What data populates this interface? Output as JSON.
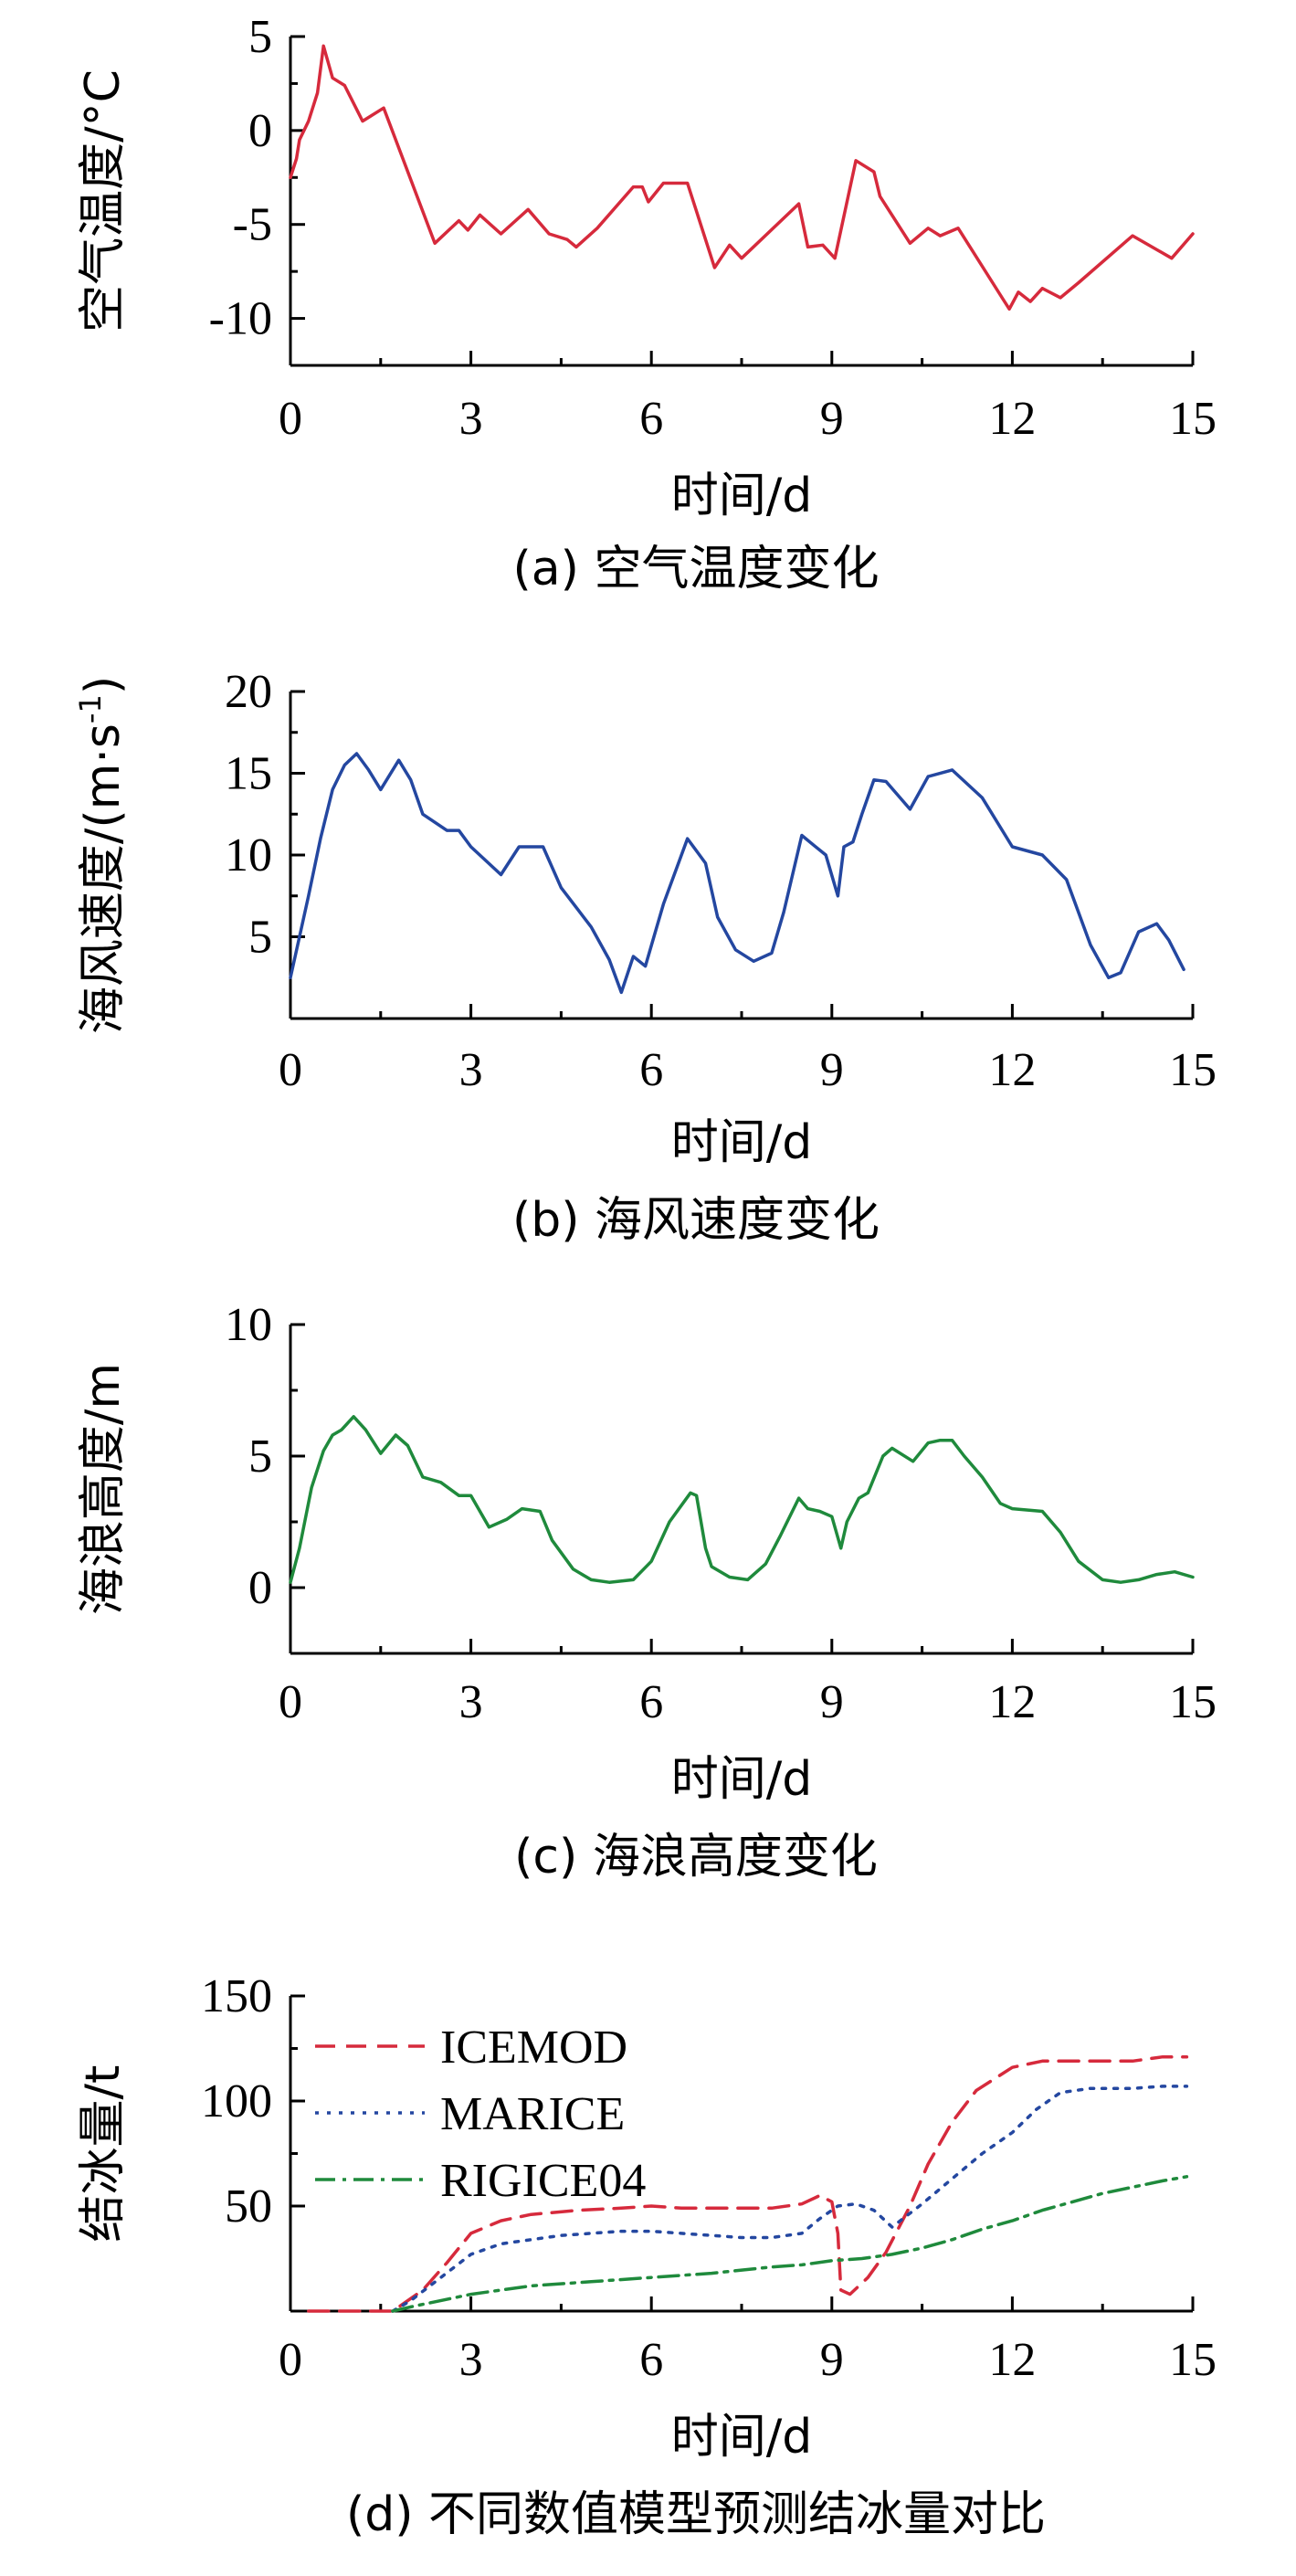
{
  "chart_data": [
    {
      "type": "line",
      "caption": "(a) 空气温度变化",
      "xlabel": "时间/d",
      "ylabel": "空气温度/°C",
      "xlim": [
        0,
        15
      ],
      "ylim": [
        -12.5,
        5
      ],
      "xticks": [
        0,
        3,
        6,
        9,
        12,
        15
      ],
      "yticks": [
        5,
        0,
        -5,
        -10
      ],
      "series": [
        {
          "color": "#d62a3c",
          "x": [
            0,
            0.1,
            0.15,
            0.3,
            0.45,
            0.55,
            0.7,
            0.9,
            1.2,
            1.55,
            2.4,
            2.8,
            2.95,
            3.15,
            3.5,
            3.95,
            4.3,
            4.6,
            4.75,
            5.1,
            5.7,
            5.85,
            5.95,
            6.2,
            6.6,
            7.05,
            7.3,
            7.5,
            8.45,
            8.6,
            8.85,
            9.05,
            9.4,
            9.7,
            9.8,
            10.3,
            10.6,
            10.8,
            11.1,
            11.85,
            11.95,
            12.1,
            12.3,
            12.5,
            12.8,
            13.1,
            14.0,
            14.65,
            15.0
          ],
          "y": [
            -2.5,
            -1.5,
            -0.5,
            0.5,
            2,
            4.5,
            2.8,
            2.4,
            0.5,
            1.2,
            -6,
            -4.8,
            -5.3,
            -4.5,
            -5.5,
            -4.2,
            -5.5,
            -5.8,
            -6.2,
            -5.2,
            -3,
            -3,
            -3.8,
            -2.8,
            -2.8,
            -7.3,
            -6.1,
            -6.8,
            -3.9,
            -6.2,
            -6.1,
            -6.8,
            -1.6,
            -2.2,
            -3.5,
            -6,
            -5.2,
            -5.6,
            -5.2,
            -9,
            -9.5,
            -8.6,
            -9.1,
            -8.4,
            -8.9,
            -8.1,
            -5.6,
            -6.8,
            -5.5
          ]
        }
      ]
    },
    {
      "type": "line",
      "caption": "(b) 海风速度变化",
      "xlabel": "时间/d",
      "ylabel": "海风速度/(m·s",
      "ylabel_sup": "-1",
      "ylabel_tail": ")",
      "xlim": [
        0,
        15
      ],
      "ylim": [
        0,
        20
      ],
      "xticks": [
        0,
        3,
        6,
        9,
        12,
        15
      ],
      "yticks": [
        20,
        15,
        10,
        5
      ],
      "series": [
        {
          "color": "#2447a0",
          "x": [
            0,
            0.3,
            0.5,
            0.7,
            0.9,
            1.1,
            1.3,
            1.5,
            1.8,
            2.0,
            2.2,
            2.6,
            2.8,
            3.0,
            3.5,
            3.8,
            4.2,
            4.5,
            5.0,
            5.3,
            5.5,
            5.7,
            5.9,
            6.2,
            6.6,
            6.9,
            7.1,
            7.4,
            7.7,
            8.0,
            8.2,
            8.5,
            8.7,
            8.9,
            9.1,
            9.2,
            9.35,
            9.5,
            9.7,
            9.9,
            10.3,
            10.6,
            11.0,
            11.5,
            12.0,
            12.5,
            12.9,
            13.3,
            13.6,
            13.8,
            14.1,
            14.4,
            14.6,
            14.85
          ],
          "y": [
            2.5,
            7.5,
            11,
            14,
            15.5,
            16.2,
            15.2,
            14,
            15.8,
            14.6,
            12.5,
            11.5,
            11.5,
            10.5,
            8.8,
            10.5,
            10.5,
            8,
            5.6,
            3.6,
            1.6,
            3.8,
            3.2,
            7,
            11,
            9.5,
            6.2,
            4.2,
            3.5,
            4.0,
            6.5,
            11.2,
            10.6,
            10.0,
            7.5,
            10.5,
            10.8,
            12.5,
            14.6,
            14.5,
            12.8,
            14.8,
            15.2,
            13.5,
            10.5,
            10,
            8.5,
            4.5,
            2.5,
            2.8,
            5.3,
            5.8,
            4.8,
            3.0
          ]
        }
      ]
    },
    {
      "type": "line",
      "caption": "(c) 海浪高度变化",
      "xlabel": "时间/d",
      "ylabel": "海浪高度/m",
      "xlim": [
        0,
        15
      ],
      "ylim": [
        -2.5,
        10
      ],
      "xticks": [
        0,
        3,
        6,
        9,
        12,
        15
      ],
      "yticks": [
        10,
        5,
        0
      ],
      "series": [
        {
          "color": "#1f8a3c",
          "x": [
            0,
            0.15,
            0.35,
            0.55,
            0.7,
            0.85,
            1.05,
            1.25,
            1.5,
            1.75,
            1.95,
            2.2,
            2.5,
            2.8,
            3.0,
            3.3,
            3.6,
            3.85,
            4.15,
            4.35,
            4.7,
            5.0,
            5.3,
            5.7,
            6.0,
            6.3,
            6.65,
            6.75,
            6.9,
            7.0,
            7.3,
            7.6,
            7.9,
            8.15,
            8.45,
            8.6,
            8.8,
            9.0,
            9.15,
            9.25,
            9.45,
            9.6,
            9.85,
            10.0,
            10.35,
            10.6,
            10.8,
            11.0,
            11.2,
            11.5,
            11.8,
            12.0,
            12.5,
            12.8,
            13.1,
            13.5,
            13.8,
            14.1,
            14.4,
            14.7,
            15.0
          ],
          "y": [
            0.2,
            1.5,
            3.8,
            5.2,
            5.8,
            6.0,
            6.5,
            6.0,
            5.1,
            5.8,
            5.4,
            4.2,
            4.0,
            3.5,
            3.5,
            2.3,
            2.6,
            3.0,
            2.9,
            1.8,
            0.7,
            0.3,
            0.2,
            0.3,
            1.0,
            2.5,
            3.6,
            3.5,
            1.5,
            0.8,
            0.4,
            0.3,
            0.9,
            2.0,
            3.4,
            3.0,
            2.9,
            2.7,
            1.5,
            2.5,
            3.4,
            3.6,
            5.0,
            5.3,
            4.8,
            5.5,
            5.6,
            5.6,
            5.0,
            4.2,
            3.2,
            3.0,
            2.9,
            2.1,
            1.0,
            0.3,
            0.2,
            0.3,
            0.5,
            0.6,
            0.4
          ]
        }
      ]
    },
    {
      "type": "line",
      "caption": "(d) 不同数值模型预测结冰量对比",
      "xlabel": "时间/d",
      "ylabel": "结冰量/t",
      "xlim": [
        0,
        15
      ],
      "ylim": [
        0,
        150
      ],
      "xticks": [
        0,
        3,
        6,
        9,
        12,
        15
      ],
      "yticks": [
        150,
        100,
        50
      ],
      "legend_position": "top-left",
      "series": [
        {
          "name": "ICEMOD",
          "color": "#d62a3c",
          "dash": "dashed",
          "x": [
            0.3,
            0.6,
            1.7,
            2.2,
            2.6,
            3.0,
            3.5,
            4.0,
            4.8,
            5.5,
            6.0,
            6.5,
            7.5,
            8.0,
            8.5,
            8.8,
            9.0,
            9.1,
            9.15,
            9.3,
            9.6,
            9.9,
            10.3,
            10.6,
            11.0,
            11.4,
            12.0,
            12.5,
            13.0,
            13.5,
            14.0,
            14.5,
            14.9
          ],
          "y": [
            0,
            0,
            0,
            10,
            23,
            37,
            43,
            46,
            48,
            49,
            50,
            49,
            49,
            49,
            51,
            55,
            52,
            37,
            10,
            8,
            16,
            28,
            50,
            70,
            90,
            105,
            116,
            119,
            119,
            119,
            119,
            121,
            121
          ]
        },
        {
          "name": "MARICE",
          "color": "#2447a0",
          "dash": "dotted",
          "x": [
            1.7,
            2.0,
            2.5,
            3.0,
            3.5,
            4.0,
            4.5,
            5.0,
            5.5,
            6.0,
            6.5,
            7.0,
            7.5,
            8.0,
            8.5,
            8.8,
            9.1,
            9.4,
            9.7,
            10.0,
            10.5,
            11.0,
            11.5,
            12.0,
            12.4,
            12.8,
            13.3,
            14.0,
            14.5,
            14.9
          ],
          "y": [
            0,
            5,
            16,
            27,
            32,
            34,
            36,
            37,
            38,
            38,
            37,
            36,
            35,
            35,
            37,
            44,
            50,
            51,
            48,
            40,
            51,
            63,
            75,
            85,
            96,
            104,
            106,
            106,
            107,
            107
          ]
        },
        {
          "name": "RIGICE04",
          "color": "#1f8a3c",
          "dash": "dashdot",
          "x": [
            1.7,
            2.0,
            3.0,
            4.0,
            5.0,
            6.0,
            7.0,
            8.0,
            8.5,
            9.0,
            9.5,
            10.0,
            10.5,
            11.0,
            11.5,
            12.0,
            12.5,
            13.0,
            13.5,
            14.0,
            14.5,
            14.9
          ],
          "y": [
            0,
            2,
            8,
            12,
            14,
            16,
            18,
            21,
            22,
            24,
            25,
            27,
            30,
            34,
            39,
            43,
            48,
            52,
            56,
            59,
            62,
            64
          ]
        }
      ]
    }
  ]
}
